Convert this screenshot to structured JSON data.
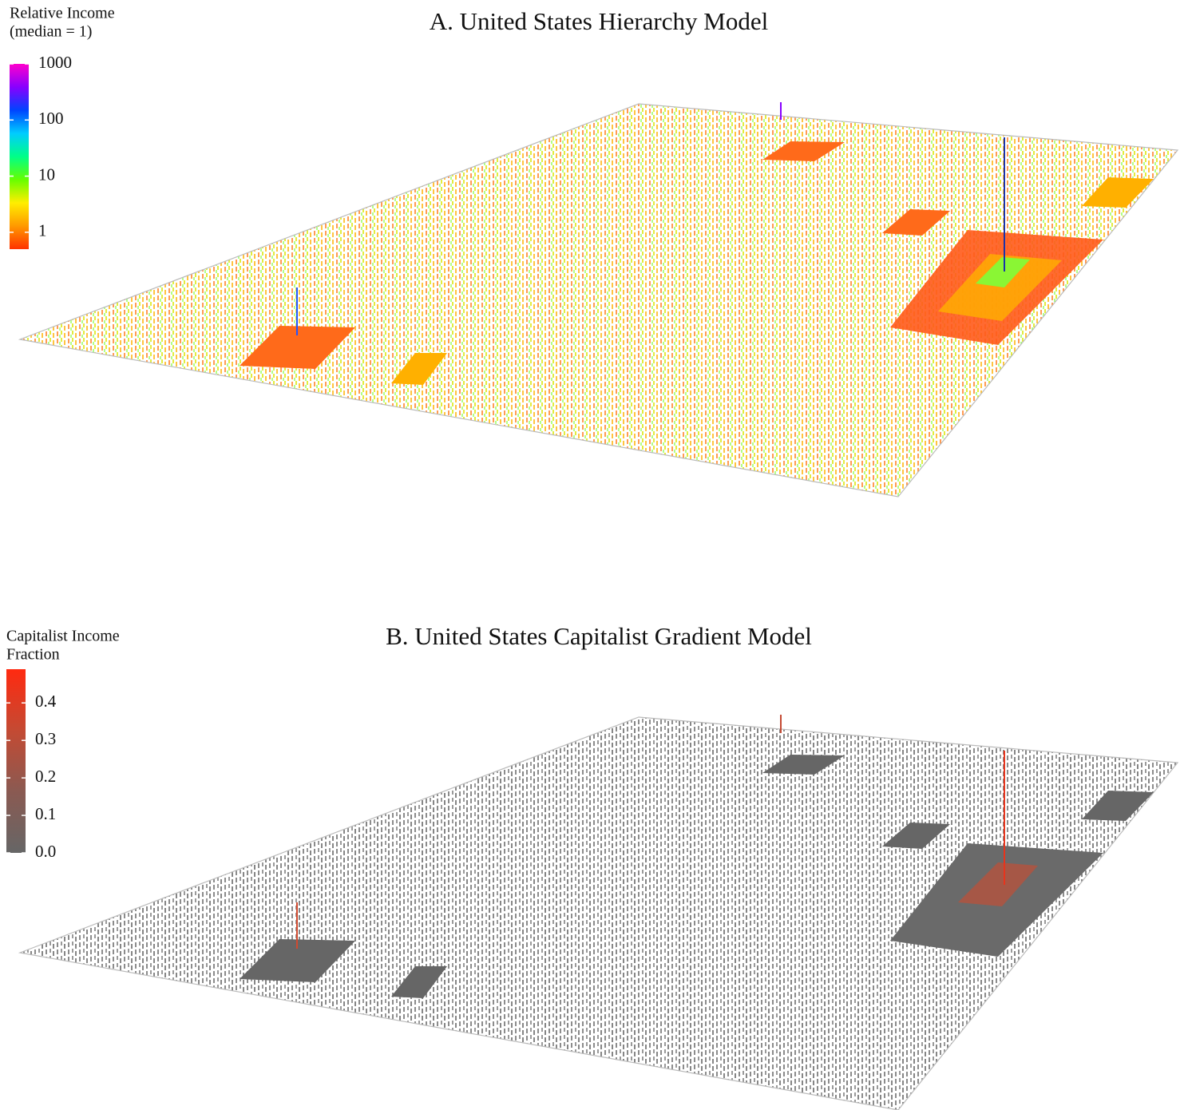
{
  "chart_data": [
    {
      "type": "bar3d",
      "title": "A.  United States Hierarchy Model",
      "colorbar_title": [
        "Relative Income",
        "(median = 1)"
      ],
      "log_scale": true,
      "ylim": [
        0.5,
        1000
      ],
      "yticks": [
        1,
        10,
        100,
        1000
      ],
      "colors": [
        "#ff3300",
        "#ff9900",
        "#ffee00",
        "#66ff00",
        "#00ff88",
        "#00ccff",
        "#0044ff",
        "#8800ff",
        "#ff00cc"
      ]
    },
    {
      "type": "bar3d",
      "title": "B.  United States Capitalist Gradient Model",
      "colorbar_title": [
        "Capitalist Income",
        "Fraction"
      ],
      "log_scale": false,
      "ylim": [
        0,
        0.49
      ],
      "yticks": [
        {
          "value": 0,
          "label": "0.0"
        },
        0.1,
        0.2,
        0.3,
        0.4
      ],
      "colors": [
        "#666666",
        "#8a5a52",
        "#c44a33",
        "#ff2a10"
      ]
    }
  ]
}
